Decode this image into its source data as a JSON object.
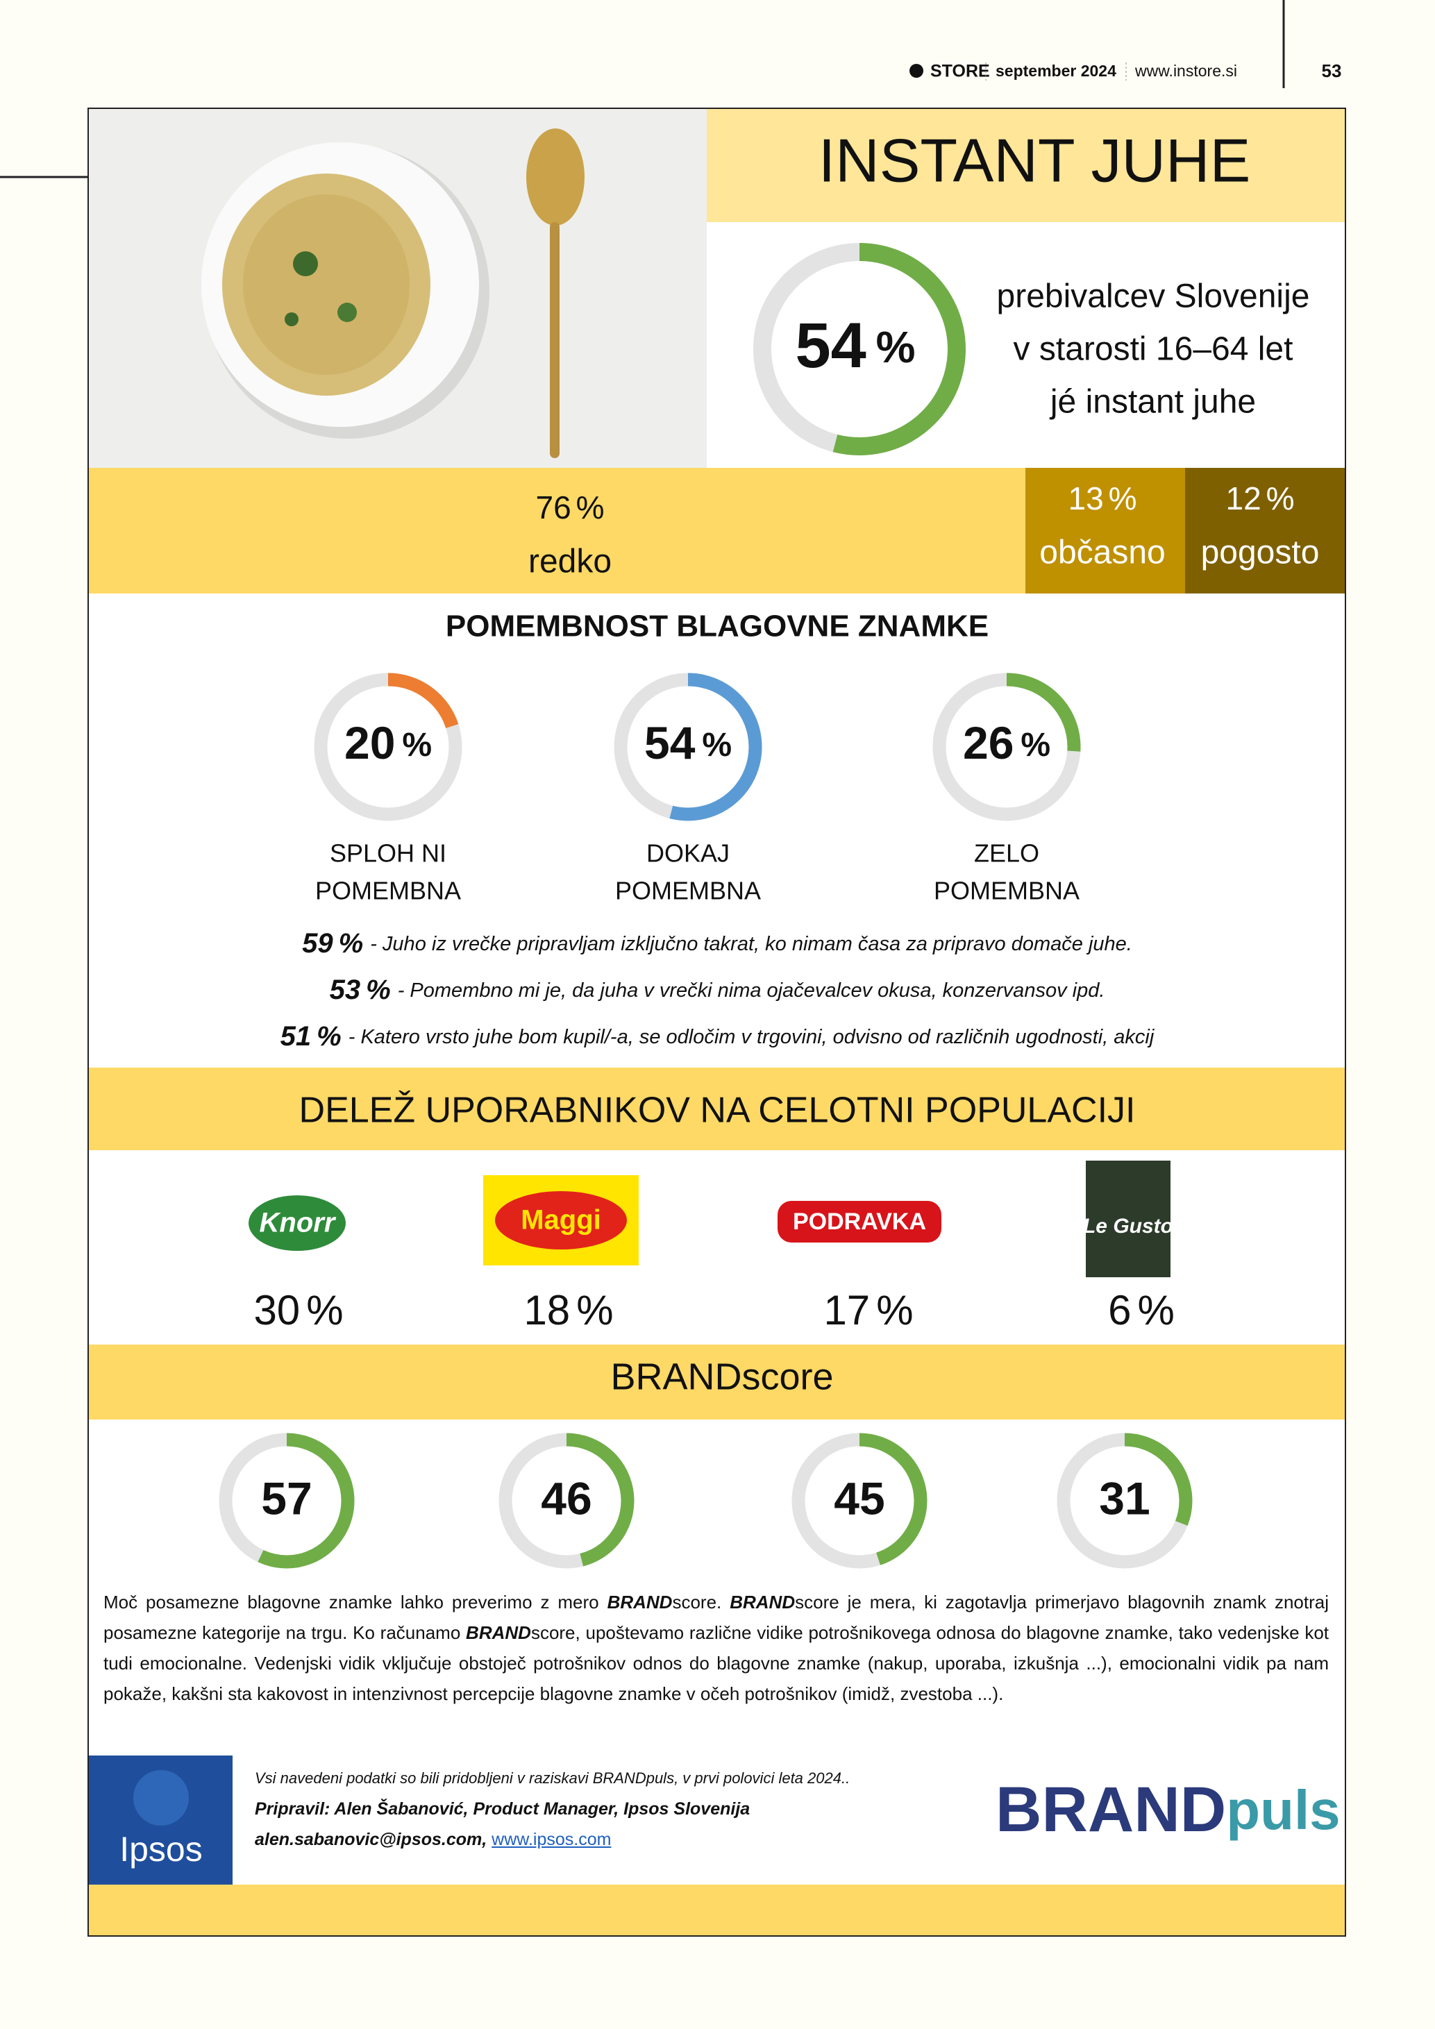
{
  "header": {
    "brand": "STORE",
    "date": "september 2024",
    "url": "www.instore.si",
    "page": "53"
  },
  "title": "INSTANT JUHE",
  "usage": {
    "value": 54,
    "unit": "%",
    "text": [
      "prebivalcev Slovenije",
      "v starosti 16–64 let",
      "jé instant juhe"
    ]
  },
  "frequency": [
    {
      "value": 76,
      "unit": "%",
      "label": "redko"
    },
    {
      "value": 13,
      "unit": "%",
      "label": "občasno"
    },
    {
      "value": 12,
      "unit": "%",
      "label": "pogosto"
    }
  ],
  "importance": {
    "title": "POMEMBNOST BLAGOVNE ZNAMKE",
    "items": [
      {
        "value": 20,
        "unit": "%",
        "label": [
          "SPLOH NI",
          "POMEMBNA"
        ]
      },
      {
        "value": 54,
        "unit": "%",
        "label": [
          "DOKAJ",
          "POMEMBNA"
        ]
      },
      {
        "value": 26,
        "unit": "%",
        "label": [
          "ZELO",
          "POMEMBNA"
        ]
      }
    ]
  },
  "statements": [
    {
      "value": 59,
      "unit": "%",
      "text": "- Juho iz vrečke pripravljam izključno takrat, ko nimam časa za pripravo domače juhe."
    },
    {
      "value": 53,
      "unit": "%",
      "text": "- Pomembno mi je, da juha v vrečki nima ojačevalcev okusa, konzervansov ipd."
    },
    {
      "value": 51,
      "unit": "%",
      "text": "- Katero vrsto juhe bom kupil/-a, se odločim v trgovini, odvisno od različnih ugodnosti, akcij"
    }
  ],
  "share": {
    "title": "DELEŽ UPORABNIKOV NA CELOTNI POPULACIJI",
    "brands": [
      {
        "name": "Knorr",
        "value": 30,
        "unit": "%"
      },
      {
        "name": "Maggi",
        "value": 18,
        "unit": "%"
      },
      {
        "name": "PODRAVKA",
        "value": 17,
        "unit": "%"
      },
      {
        "name": "Le Gusto",
        "value": 6,
        "unit": "%"
      }
    ]
  },
  "brandscore": {
    "title": "BRANDscore",
    "values": [
      57,
      46,
      45,
      31
    ]
  },
  "paragraph": [
    {
      "text": "Moč posamezne blagovne znamke lahko preverimo z mero "
    },
    {
      "text": "BRAND",
      "strong": true
    },
    {
      "text": "score. "
    },
    {
      "text": "BRAND",
      "strong": true
    },
    {
      "text": "score je mera, ki zagotavlja primerjavo blagovnih znamk znotraj posamezne kategorije na trgu. Ko računamo "
    },
    {
      "text": "BRAND",
      "strong": true
    },
    {
      "text": "score, upoštevamo različne vidike potrošnikovega odnosa do blagovne znamke, tako vedenjske kot tudi emocionalne. Vedenjski vidik vključuje obstoječ potrošnikov odnos do blagovne znamke (nakup, uporaba, izkušnja ...), emocionalni vidik pa nam pokaže, kakšni sta kakovost in intenzivnost percepcije blagovne znamke v očeh potrošnikov (imidž, zvestoba ...)."
    }
  ],
  "footer": {
    "logo": "Ipsos",
    "note": "Vsi navedeni podatki so bili pridobljeni v raziskavi BRANDpuls, v prvi polovici leta 2024..",
    "author": "Pripravil: Alen Šabanović, Product Manager, Ipsos Slovenija",
    "email": "alen.sabanovic@ipsos.com,",
    "link": "www.ipsos.com",
    "brandpuls": [
      "BRAND",
      "puls"
    ]
  }
}
